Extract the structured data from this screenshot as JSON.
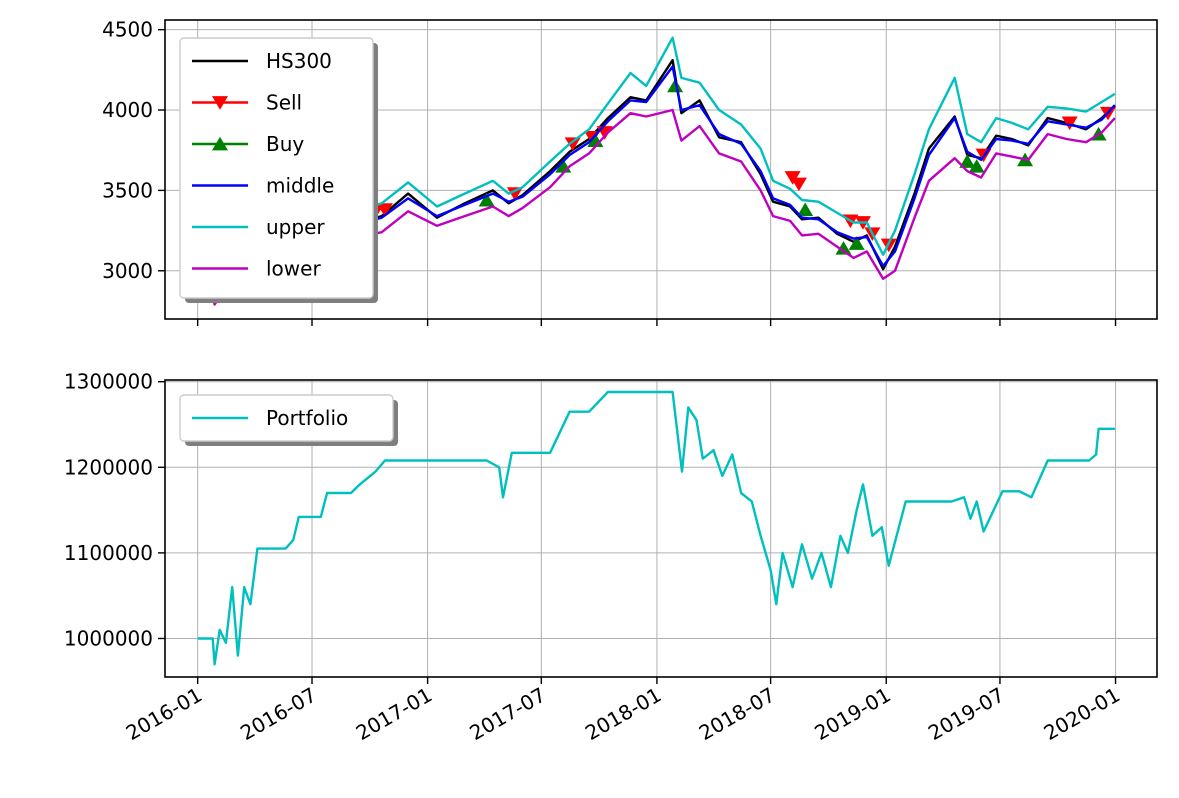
{
  "chart_data": [
    {
      "type": "line",
      "x_axis": {
        "type": "date",
        "range": [
          "2015-11-10",
          "2020-03-07"
        ],
        "ticks": [
          "2016-01",
          "2016-07",
          "2017-01",
          "2017-07",
          "2018-01",
          "2018-07",
          "2019-01",
          "2019-07",
          "2020-01"
        ],
        "tick_labels_shown": false
      },
      "y_axis": {
        "range": [
          2700,
          4560
        ],
        "ticks": [
          3000,
          3500,
          4000,
          4500
        ],
        "tick_labels": [
          "3000",
          "3500",
          "4000",
          "4500"
        ]
      },
      "grid": true,
      "legend": {
        "placement": "top-left"
      },
      "series": [
        {
          "name": "HS300",
          "color": "#000000",
          "marker": "none",
          "x": [
            "2016-01-04",
            "2016-01-28",
            "2016-03-01",
            "2016-04-15",
            "2016-06-01",
            "2016-07-15",
            "2016-09-01",
            "2016-10-20",
            "2016-12-01",
            "2017-01-16",
            "2017-03-01",
            "2017-04-15",
            "2017-05-10",
            "2017-06-01",
            "2017-07-15",
            "2017-08-15",
            "2017-09-15",
            "2017-10-15",
            "2017-11-20",
            "2017-12-15",
            "2018-01-26",
            "2018-02-09",
            "2018-03-10",
            "2018-04-10",
            "2018-05-15",
            "2018-06-15",
            "2018-07-05",
            "2018-08-01",
            "2018-08-20",
            "2018-09-15",
            "2018-10-15",
            "2018-11-10",
            "2018-12-01",
            "2018-12-27",
            "2019-01-15",
            "2019-02-15",
            "2019-03-10",
            "2019-04-20",
            "2019-05-10",
            "2019-06-01",
            "2019-06-25",
            "2019-07-20",
            "2019-08-15",
            "2019-09-15",
            "2019-10-15",
            "2019-11-15",
            "2019-12-10",
            "2019-12-31"
          ],
          "y": [
            3470,
            2860,
            3090,
            3210,
            3100,
            3230,
            3290,
            3340,
            3480,
            3330,
            3420,
            3500,
            3420,
            3470,
            3620,
            3740,
            3820,
            3950,
            4080,
            4060,
            4310,
            3980,
            4060,
            3830,
            3800,
            3600,
            3430,
            3400,
            3320,
            3330,
            3230,
            3180,
            3220,
            3010,
            3150,
            3480,
            3760,
            3960,
            3720,
            3700,
            3840,
            3820,
            3780,
            3950,
            3920,
            3880,
            3950,
            4030
          ]
        },
        {
          "name": "Sell",
          "color": "#ff0000",
          "marker": "down-triangle",
          "x": [
            "2016-04-10",
            "2016-10-10",
            "2016-10-25",
            "2017-05-20",
            "2017-08-20",
            "2017-09-20",
            "2017-10-10",
            "2018-08-05",
            "2018-08-15",
            "2018-11-05",
            "2018-11-25",
            "2018-12-10",
            "2019-01-05",
            "2019-06-05",
            "2019-10-20",
            "2019-12-20"
          ],
          "y": [
            3250,
            3370,
            3380,
            3480,
            3790,
            3830,
            3860,
            3580,
            3540,
            3310,
            3300,
            3230,
            3160,
            3720,
            3920,
            3980
          ]
        },
        {
          "name": "Buy",
          "color": "#008000",
          "marker": "up-triangle",
          "x": [
            "2016-01-28",
            "2016-05-25",
            "2017-04-05",
            "2017-08-05",
            "2017-09-25",
            "2018-01-30",
            "2018-08-25",
            "2018-10-25",
            "2018-11-15",
            "2019-05-10",
            "2019-05-25",
            "2019-08-10",
            "2019-12-05"
          ],
          "y": [
            2880,
            3050,
            3440,
            3650,
            3810,
            4150,
            3380,
            3140,
            3170,
            3680,
            3650,
            3690,
            3850
          ]
        },
        {
          "name": "middle",
          "color": "#0000ff",
          "marker": "none",
          "x": [
            "2016-01-04",
            "2016-01-28",
            "2016-03-01",
            "2016-04-15",
            "2016-06-01",
            "2016-07-15",
            "2016-09-01",
            "2016-10-20",
            "2016-12-01",
            "2017-01-16",
            "2017-03-01",
            "2017-04-15",
            "2017-05-10",
            "2017-06-01",
            "2017-07-15",
            "2017-08-15",
            "2017-09-15",
            "2017-10-15",
            "2017-11-20",
            "2017-12-15",
            "2018-01-26",
            "2018-02-09",
            "2018-03-10",
            "2018-04-10",
            "2018-05-15",
            "2018-06-15",
            "2018-07-05",
            "2018-08-01",
            "2018-08-20",
            "2018-09-15",
            "2018-10-15",
            "2018-11-10",
            "2018-12-01",
            "2018-12-27",
            "2019-01-15",
            "2019-02-15",
            "2019-03-10",
            "2019-04-20",
            "2019-05-10",
            "2019-06-01",
            "2019-06-25",
            "2019-07-20",
            "2019-08-15",
            "2019-09-15",
            "2019-10-15",
            "2019-11-15",
            "2019-12-10",
            "2019-12-31"
          ],
          "y": [
            3420,
            2920,
            3080,
            3200,
            3110,
            3220,
            3280,
            3330,
            3450,
            3340,
            3410,
            3480,
            3430,
            3460,
            3600,
            3720,
            3800,
            3930,
            4060,
            4050,
            4270,
            4000,
            4030,
            3850,
            3790,
            3620,
            3450,
            3410,
            3330,
            3320,
            3240,
            3200,
            3210,
            3030,
            3120,
            3450,
            3720,
            3950,
            3740,
            3690,
            3820,
            3810,
            3790,
            3930,
            3910,
            3890,
            3940,
            4030
          ]
        },
        {
          "name": "upper",
          "color": "#00bfbf",
          "marker": "none",
          "x": [
            "2016-01-04",
            "2016-01-28",
            "2016-03-01",
            "2016-04-15",
            "2016-06-01",
            "2016-07-15",
            "2016-09-01",
            "2016-10-20",
            "2016-12-01",
            "2017-01-16",
            "2017-03-01",
            "2017-04-15",
            "2017-05-10",
            "2017-06-01",
            "2017-07-15",
            "2017-08-15",
            "2017-09-15",
            "2017-10-15",
            "2017-11-20",
            "2017-12-15",
            "2018-01-26",
            "2018-02-09",
            "2018-03-10",
            "2018-04-10",
            "2018-05-15",
            "2018-06-15",
            "2018-07-05",
            "2018-08-01",
            "2018-08-20",
            "2018-09-15",
            "2018-10-15",
            "2018-11-10",
            "2018-12-01",
            "2018-12-27",
            "2019-01-15",
            "2019-02-15",
            "2019-03-10",
            "2019-04-20",
            "2019-05-10",
            "2019-06-01",
            "2019-06-25",
            "2019-07-20",
            "2019-08-15",
            "2019-09-15",
            "2019-10-15",
            "2019-11-15",
            "2019-12-10",
            "2019-12-31"
          ],
          "y": [
            3600,
            3100,
            3180,
            3290,
            3220,
            3300,
            3360,
            3420,
            3550,
            3400,
            3480,
            3560,
            3480,
            3520,
            3680,
            3790,
            3880,
            4040,
            4230,
            4150,
            4450,
            4200,
            4170,
            4000,
            3910,
            3760,
            3560,
            3510,
            3440,
            3430,
            3360,
            3300,
            3300,
            3100,
            3250,
            3600,
            3880,
            4200,
            3850,
            3800,
            3950,
            3920,
            3880,
            4020,
            4010,
            3990,
            4050,
            4100
          ]
        },
        {
          "name": "lower",
          "color": "#bf00bf",
          "marker": "none",
          "x": [
            "2016-01-04",
            "2016-01-28",
            "2016-03-01",
            "2016-04-15",
            "2016-06-01",
            "2016-07-15",
            "2016-09-01",
            "2016-10-20",
            "2016-12-01",
            "2017-01-16",
            "2017-03-01",
            "2017-04-15",
            "2017-05-10",
            "2017-06-01",
            "2017-07-15",
            "2017-08-15",
            "2017-09-15",
            "2017-10-15",
            "2017-11-20",
            "2017-12-15",
            "2018-01-26",
            "2018-02-09",
            "2018-03-10",
            "2018-04-10",
            "2018-05-15",
            "2018-06-15",
            "2018-07-05",
            "2018-08-01",
            "2018-08-20",
            "2018-09-15",
            "2018-10-15",
            "2018-11-10",
            "2018-12-01",
            "2018-12-27",
            "2019-01-15",
            "2019-02-15",
            "2019-03-10",
            "2019-04-20",
            "2019-05-10",
            "2019-06-01",
            "2019-06-25",
            "2019-07-20",
            "2019-08-15",
            "2019-09-15",
            "2019-10-15",
            "2019-11-15",
            "2019-12-10",
            "2019-12-31"
          ],
          "y": [
            3250,
            2790,
            2980,
            3100,
            3010,
            3140,
            3200,
            3240,
            3370,
            3280,
            3340,
            3400,
            3340,
            3390,
            3520,
            3650,
            3730,
            3860,
            3980,
            3960,
            4000,
            3810,
            3900,
            3730,
            3680,
            3500,
            3340,
            3310,
            3220,
            3230,
            3150,
            3080,
            3120,
            2950,
            3000,
            3330,
            3560,
            3700,
            3620,
            3580,
            3730,
            3710,
            3690,
            3850,
            3820,
            3800,
            3860,
            3950
          ]
        }
      ]
    },
    {
      "type": "line",
      "x_axis": {
        "type": "date",
        "range": [
          "2015-11-10",
          "2020-03-07"
        ],
        "ticks": [
          "2016-01",
          "2016-07",
          "2017-01",
          "2017-07",
          "2018-01",
          "2018-07",
          "2019-01",
          "2019-07",
          "2020-01"
        ],
        "tick_labels": [
          "2016-01",
          "2016-07",
          "2017-01",
          "2017-07",
          "2018-01",
          "2018-07",
          "2019-01",
          "2019-07",
          "2020-01"
        ]
      },
      "y_axis": {
        "range": [
          955000,
          1302000
        ],
        "ticks": [
          1000000,
          1100000,
          1200000,
          1300000
        ],
        "tick_labels": [
          "1000000",
          "1100000",
          "1200000",
          "1300000"
        ]
      },
      "grid": true,
      "legend": {
        "placement": "top-left"
      },
      "series": [
        {
          "name": "Portfolio",
          "color": "#00bfbf",
          "marker": "none",
          "x": [
            "2016-01-01",
            "2016-01-25",
            "2016-01-28",
            "2016-02-05",
            "2016-02-15",
            "2016-02-25",
            "2016-03-05",
            "2016-03-15",
            "2016-03-25",
            "2016-04-05",
            "2016-05-20",
            "2016-06-01",
            "2016-06-10",
            "2016-07-15",
            "2016-07-25",
            "2016-09-01",
            "2016-09-15",
            "2016-10-10",
            "2016-10-25",
            "2016-12-01",
            "2017-01-15",
            "2017-03-01",
            "2017-04-05",
            "2017-04-25",
            "2017-05-01",
            "2017-05-15",
            "2017-05-25",
            "2017-06-10",
            "2017-07-15",
            "2017-08-15",
            "2017-09-15",
            "2017-10-15",
            "2017-11-01",
            "2017-12-20",
            "2018-01-26",
            "2018-02-10",
            "2018-02-20",
            "2018-03-05",
            "2018-03-15",
            "2018-04-01",
            "2018-04-15",
            "2018-05-01",
            "2018-05-15",
            "2018-06-01",
            "2018-06-15",
            "2018-07-01",
            "2018-07-10",
            "2018-07-20",
            "2018-08-05",
            "2018-08-20",
            "2018-09-05",
            "2018-09-20",
            "2018-10-05",
            "2018-10-20",
            "2018-11-01",
            "2018-11-15",
            "2018-11-25",
            "2018-12-10",
            "2018-12-25",
            "2019-01-05",
            "2019-02-01",
            "2019-03-01",
            "2019-04-15",
            "2019-05-05",
            "2019-05-15",
            "2019-05-25",
            "2019-06-05",
            "2019-07-05",
            "2019-08-01",
            "2019-08-20",
            "2019-09-15",
            "2019-11-05",
            "2019-11-20",
            "2019-12-01",
            "2019-12-05",
            "2019-12-15",
            "2019-12-31"
          ],
          "y": [
            1000000,
            1000000,
            970000,
            1010000,
            995000,
            1060000,
            980000,
            1060000,
            1040000,
            1105000,
            1105000,
            1115000,
            1142000,
            1142000,
            1170000,
            1170000,
            1180000,
            1195000,
            1208000,
            1208000,
            1208000,
            1208000,
            1208000,
            1200000,
            1165000,
            1217000,
            1217000,
            1217000,
            1217000,
            1265000,
            1265000,
            1288000,
            1288000,
            1288000,
            1288000,
            1195000,
            1270000,
            1255000,
            1210000,
            1220000,
            1190000,
            1215000,
            1170000,
            1160000,
            1120000,
            1080000,
            1040000,
            1100000,
            1060000,
            1110000,
            1070000,
            1100000,
            1060000,
            1120000,
            1100000,
            1150000,
            1180000,
            1120000,
            1130000,
            1085000,
            1160000,
            1160000,
            1160000,
            1165000,
            1140000,
            1160000,
            1125000,
            1172000,
            1172000,
            1165000,
            1208000,
            1208000,
            1208000,
            1215000,
            1245000,
            1245000,
            1245000
          ]
        }
      ]
    }
  ]
}
